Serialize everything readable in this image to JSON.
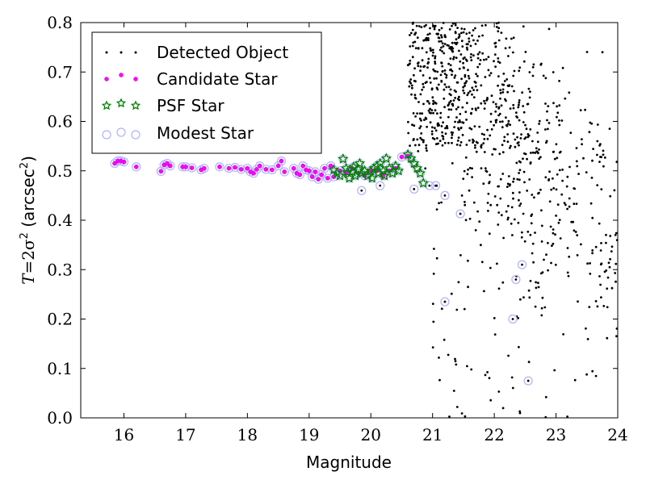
{
  "chart_data": {
    "type": "scatter",
    "xlabel": "Magnitude",
    "ylabel_parts": {
      "var": "T",
      "eq": "=2σ",
      "paren_open": " (arcsec",
      "paren_close": ")"
    },
    "ylabel_sup_parts": {
      "sigma_power": "2",
      "unit_power": "2"
    },
    "xlim": [
      15.3,
      24
    ],
    "ylim": [
      0,
      0.8
    ],
    "xticks": [
      "16",
      "17",
      "18",
      "19",
      "20",
      "21",
      "22",
      "23",
      "24"
    ],
    "yticks": [
      "0.0",
      "0.1",
      "0.2",
      "0.3",
      "0.4",
      "0.5",
      "0.6",
      "0.7",
      "0.8"
    ],
    "legend": {
      "placement": "upper-left",
      "entries": [
        "Detected Object",
        "Candidate Star",
        "PSF Star",
        "Modest Star"
      ]
    },
    "colors": {
      "detected": "#000000",
      "candidate": "#ff00ff",
      "psf": "#008000",
      "modest": "#b0b0ff"
    },
    "series": [
      {
        "name": "Candidate Star",
        "points": [
          [
            15.85,
            0.515
          ],
          [
            15.9,
            0.52
          ],
          [
            15.95,
            0.52
          ],
          [
            16.0,
            0.518
          ],
          [
            16.2,
            0.508
          ],
          [
            16.6,
            0.499
          ],
          [
            16.65,
            0.512
          ],
          [
            16.7,
            0.515
          ],
          [
            16.75,
            0.51
          ],
          [
            16.95,
            0.508
          ],
          [
            17.0,
            0.508
          ],
          [
            17.1,
            0.506
          ],
          [
            17.25,
            0.502
          ],
          [
            17.3,
            0.505
          ],
          [
            17.55,
            0.508
          ],
          [
            17.7,
            0.505
          ],
          [
            17.8,
            0.507
          ],
          [
            17.9,
            0.503
          ],
          [
            18.0,
            0.505
          ],
          [
            18.05,
            0.498
          ],
          [
            18.1,
            0.495
          ],
          [
            18.15,
            0.503
          ],
          [
            18.2,
            0.51
          ],
          [
            18.3,
            0.503
          ],
          [
            18.4,
            0.502
          ],
          [
            18.5,
            0.51
          ],
          [
            18.55,
            0.52
          ],
          [
            18.6,
            0.498
          ],
          [
            18.75,
            0.505
          ],
          [
            18.8,
            0.495
          ],
          [
            18.85,
            0.492
          ],
          [
            18.9,
            0.51
          ],
          [
            18.95,
            0.502
          ],
          [
            19.0,
            0.5
          ],
          [
            19.05,
            0.488
          ],
          [
            19.1,
            0.498
          ],
          [
            19.15,
            0.483
          ],
          [
            19.2,
            0.492
          ],
          [
            19.25,
            0.505
          ],
          [
            19.3,
            0.485
          ],
          [
            19.35,
            0.51
          ],
          [
            19.4,
            0.488
          ],
          [
            19.5,
            0.5
          ],
          [
            19.6,
            0.495
          ],
          [
            19.7,
            0.505
          ],
          [
            19.8,
            0.495
          ],
          [
            19.9,
            0.49
          ],
          [
            20.0,
            0.5
          ],
          [
            20.1,
            0.5
          ],
          [
            20.2,
            0.49
          ],
          [
            20.3,
            0.5
          ],
          [
            20.4,
            0.505
          ],
          [
            20.5,
            0.528
          ],
          [
            20.6,
            0.53
          ]
        ]
      },
      {
        "name": "PSF Star",
        "points": [
          [
            19.4,
            0.502
          ],
          [
            19.45,
            0.495
          ],
          [
            19.5,
            0.49
          ],
          [
            19.55,
            0.524
          ],
          [
            19.6,
            0.505
          ],
          [
            19.62,
            0.497
          ],
          [
            19.65,
            0.485
          ],
          [
            19.7,
            0.498
          ],
          [
            19.72,
            0.508
          ],
          [
            19.75,
            0.49
          ],
          [
            19.8,
            0.503
          ],
          [
            19.82,
            0.515
          ],
          [
            19.85,
            0.495
          ],
          [
            19.9,
            0.5
          ],
          [
            19.95,
            0.49
          ],
          [
            20.0,
            0.5
          ],
          [
            20.02,
            0.485
          ],
          [
            20.05,
            0.505
          ],
          [
            20.1,
            0.51
          ],
          [
            20.12,
            0.495
          ],
          [
            20.15,
            0.515
          ],
          [
            20.2,
            0.5
          ],
          [
            20.22,
            0.49
          ],
          [
            20.25,
            0.525
          ],
          [
            20.3,
            0.505
          ],
          [
            20.35,
            0.495
          ],
          [
            20.4,
            0.51
          ],
          [
            20.45,
            0.5
          ],
          [
            20.6,
            0.533
          ],
          [
            20.65,
            0.525
          ],
          [
            20.7,
            0.515
          ],
          [
            20.75,
            0.505
          ],
          [
            20.8,
            0.495
          ],
          [
            20.85,
            0.475
          ]
        ]
      },
      {
        "name": "Modest Star",
        "points": [
          [
            19.85,
            0.46
          ],
          [
            20.15,
            0.47
          ],
          [
            20.7,
            0.463
          ],
          [
            20.95,
            0.47
          ],
          [
            21.05,
            0.47
          ],
          [
            21.2,
            0.45
          ],
          [
            21.45,
            0.413
          ],
          [
            21.2,
            0.235
          ],
          [
            22.3,
            0.2
          ],
          [
            22.35,
            0.28
          ],
          [
            22.45,
            0.31
          ],
          [
            22.55,
            0.075
          ]
        ]
      }
    ]
  }
}
